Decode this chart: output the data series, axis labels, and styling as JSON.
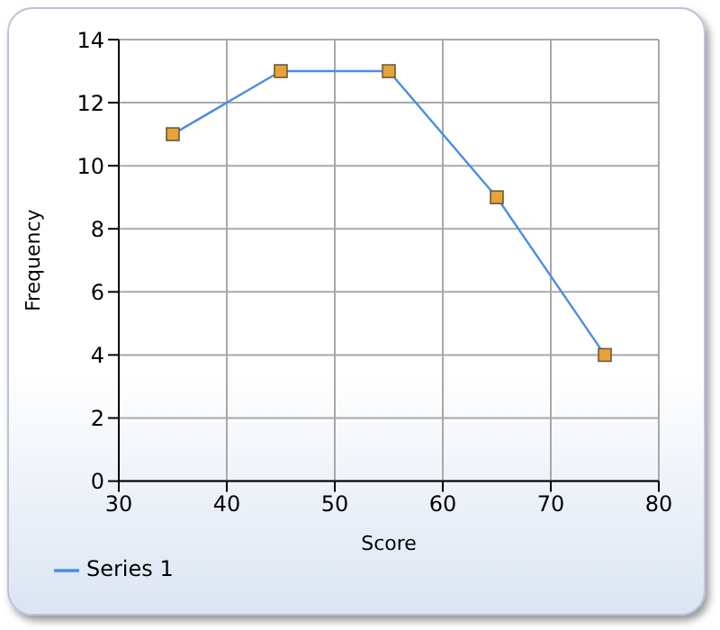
{
  "chart_data": {
    "type": "line",
    "xlabel": "Score",
    "ylabel": "Frequency",
    "x": [
      35,
      45,
      55,
      65,
      75
    ],
    "series": [
      {
        "name": "Series 1",
        "color": "#4a8fe0",
        "values": [
          11,
          13,
          13,
          9,
          4
        ],
        "colors": [
          "#e8a23a",
          "#e8a23a",
          "#e8a23a",
          "#e8a23a",
          "#e8a23a"
        ]
      }
    ],
    "xlim": [
      30,
      80
    ],
    "xticks": [
      30,
      40,
      50,
      60,
      70,
      80
    ],
    "ylim": [
      0,
      14
    ],
    "yticks": [
      0,
      2,
      4,
      6,
      8,
      10,
      12,
      14
    ],
    "grid": true,
    "legend": "bottom left",
    "marker": "square",
    "line_style": "solid"
  }
}
